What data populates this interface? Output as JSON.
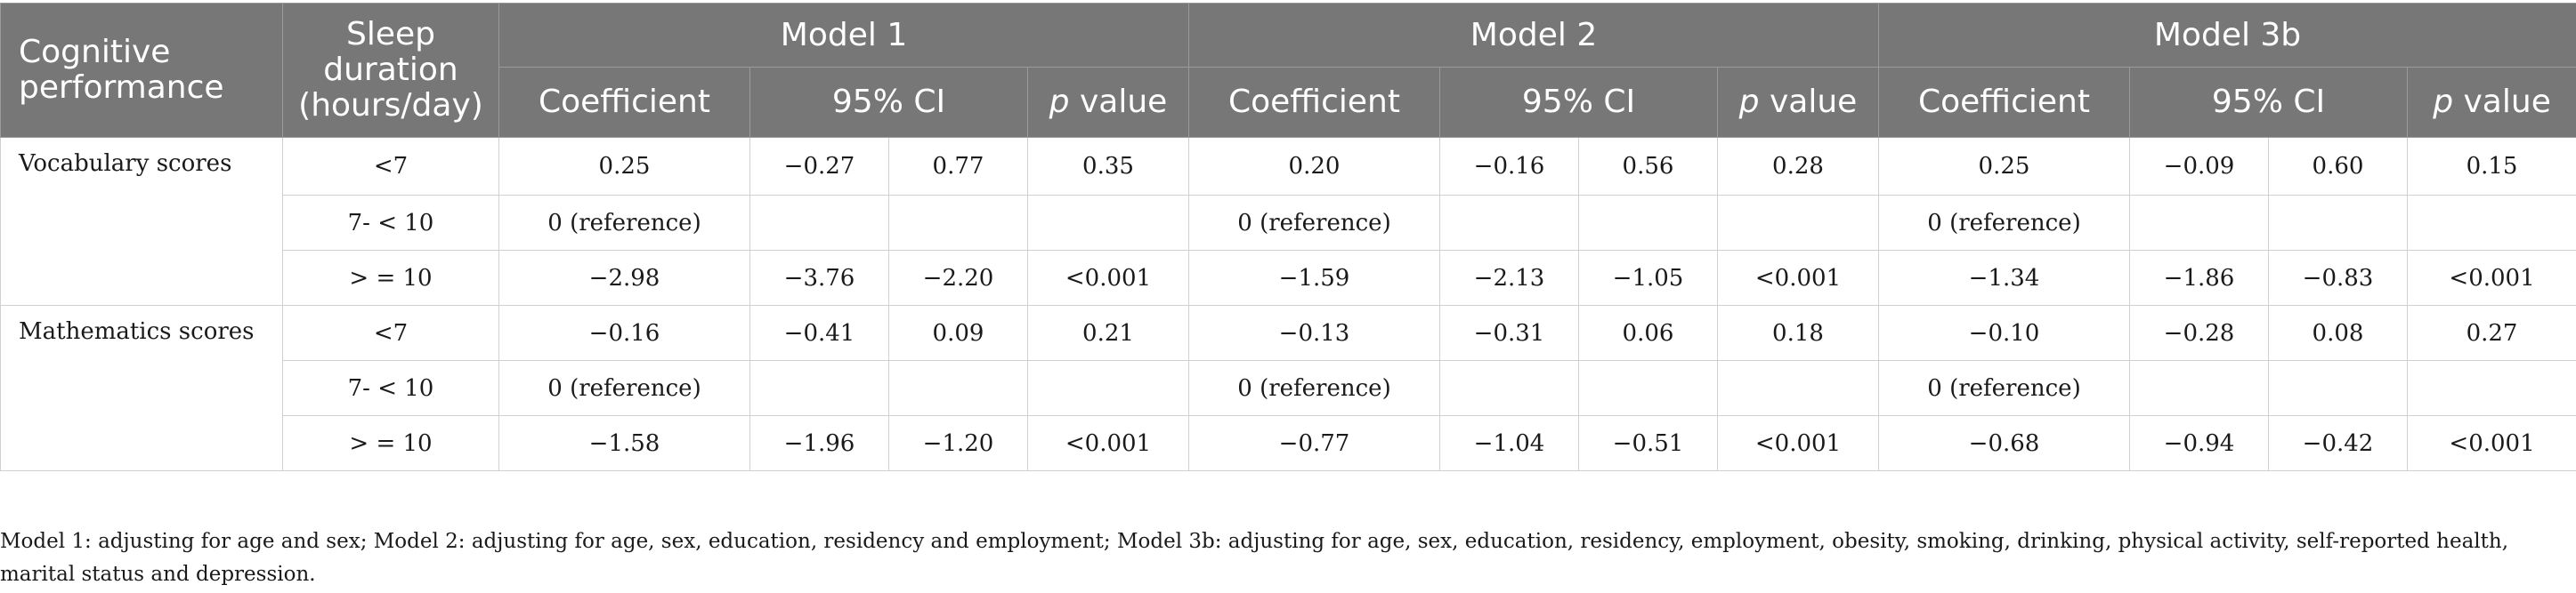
{
  "header": {
    "cognitive_performance": "Cognitive performance",
    "sleep_duration": "Sleep duration (hours/day)",
    "models": [
      "Model 1",
      "Model 2",
      "Model 3b"
    ],
    "coefficient": "Coefficient",
    "ci": "95% CI",
    "p_letter": "p",
    "p_value_suffix": " value"
  },
  "groups": [
    {
      "label": "Vocabulary scores",
      "rows": [
        {
          "sleep": "<7",
          "models": [
            {
              "coef": "0.25",
              "ci_low": "−0.27",
              "ci_high": "0.77",
              "p": "0.35"
            },
            {
              "coef": "0.20",
              "ci_low": "−0.16",
              "ci_high": "0.56",
              "p": "0.28"
            },
            {
              "coef": "0.25",
              "ci_low": "−0.09",
              "ci_high": "0.60",
              "p": "0.15"
            }
          ]
        },
        {
          "sleep": "7- < 10",
          "models": [
            {
              "coef": "0 (reference)",
              "ci_low": "",
              "ci_high": "",
              "p": ""
            },
            {
              "coef": "0 (reference)",
              "ci_low": "",
              "ci_high": "",
              "p": ""
            },
            {
              "coef": "0 (reference)",
              "ci_low": "",
              "ci_high": "",
              "p": ""
            }
          ]
        },
        {
          "sleep": "> = 10",
          "models": [
            {
              "coef": "−2.98",
              "ci_low": "−3.76",
              "ci_high": "−2.20",
              "p": "<0.001"
            },
            {
              "coef": "−1.59",
              "ci_low": "−2.13",
              "ci_high": "−1.05",
              "p": "<0.001"
            },
            {
              "coef": "−1.34",
              "ci_low": "−1.86",
              "ci_high": "−0.83",
              "p": "<0.001"
            }
          ]
        }
      ]
    },
    {
      "label": "Mathematics scores",
      "rows": [
        {
          "sleep": "<7",
          "models": [
            {
              "coef": "−0.16",
              "ci_low": "−0.41",
              "ci_high": "0.09",
              "p": "0.21"
            },
            {
              "coef": "−0.13",
              "ci_low": "−0.31",
              "ci_high": "0.06",
              "p": "0.18"
            },
            {
              "coef": "−0.10",
              "ci_low": "−0.28",
              "ci_high": "0.08",
              "p": "0.27"
            }
          ]
        },
        {
          "sleep": "7- < 10",
          "models": [
            {
              "coef": "0 (reference)",
              "ci_low": "",
              "ci_high": "",
              "p": ""
            },
            {
              "coef": "0 (reference)",
              "ci_low": "",
              "ci_high": "",
              "p": ""
            },
            {
              "coef": "0 (reference)",
              "ci_low": "",
              "ci_high": "",
              "p": ""
            }
          ]
        },
        {
          "sleep": "> = 10",
          "models": [
            {
              "coef": "−1.58",
              "ci_low": "−1.96",
              "ci_high": "−1.20",
              "p": "<0.001"
            },
            {
              "coef": "−0.77",
              "ci_low": "−1.04",
              "ci_high": "−0.51",
              "p": "<0.001"
            },
            {
              "coef": "−0.68",
              "ci_low": "−0.94",
              "ci_high": "−0.42",
              "p": "<0.001"
            }
          ]
        }
      ]
    }
  ],
  "footnote": "Model 1: adjusting for age and sex; Model 2: adjusting for age, sex, education, residency and employment; Model 3b: adjusting for age, sex, education, residency, employment, obesity, smoking, drinking, physical activity, self-reported health, marital status and depression.",
  "colors": {
    "header_bg": "#777777",
    "header_text": "#ffffff",
    "cell_border": "#d0d0d0"
  }
}
